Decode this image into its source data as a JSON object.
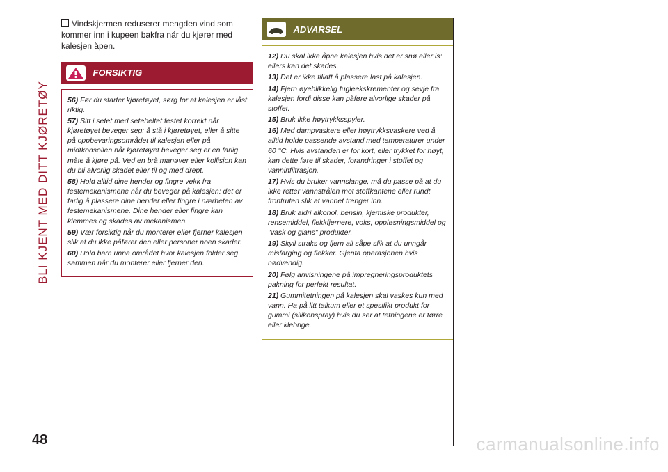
{
  "sidebarTitle": "BLI KJENT MED DITT KJØRETØY",
  "pageNumber": "48",
  "col1": {
    "intro": "Vindskjermen reduserer mengden vind som kommer inn i kupeen bakfra når du kjører med kalesjen åpen.",
    "warningLabel": "FORSIKTIG",
    "items": [
      {
        "n": "56)",
        "t": "Før du starter kjøretøyet, sørg for at kalesjen er låst riktig."
      },
      {
        "n": "57)",
        "t": "Sitt i setet med setebeltet festet korrekt når kjøretøyet beveger seg: å stå i kjøretøyet, eller å sitte på oppbevaringsområdet til kalesjen eller på midtkonsollen når kjøretøyet beveger seg er en farlig måte å kjøre på. Ved en brå manøver eller kollisjon kan du bli alvorlig skadet eller til og med drept."
      },
      {
        "n": "58)",
        "t": "Hold alltid dine hender og fingre vekk fra festemekanismene når du beveger på kalesjen: det er farlig å plassere dine hender eller fingre i nærheten av festemekanismene. Dine hender eller fingre kan klemmes og skades av mekanismen."
      },
      {
        "n": "59)",
        "t": "Vær forsiktig når du monterer eller fjerner kalesjen slik at du ikke påfører den eller personer noen skader."
      },
      {
        "n": "60)",
        "t": "Hold barn unna området hvor kalesjen folder seg sammen når du monterer eller fjerner den."
      }
    ]
  },
  "col2": {
    "warningLabel": "ADVARSEL",
    "items": [
      {
        "n": "12)",
        "t": "Du skal ikke åpne kalesjen hvis det er snø eller is: ellers kan det skades."
      },
      {
        "n": "13)",
        "t": "Det er ikke tillatt å plassere last på kalesjen."
      },
      {
        "n": "14)",
        "t": "Fjern øyeblikkelig fugleekskrementer og sevje fra kalesjen fordi disse kan påføre alvorlige skader på stoffet."
      },
      {
        "n": "15)",
        "t": "Bruk ikke høytrykksspyler."
      },
      {
        "n": "16)",
        "t": "Med dampvaskere eller høytrykksvaskere ved å alltid holde passende avstand med temperaturer under 60 °C. Hvis avstanden er for kort, eller trykket for høyt, kan dette føre til skader, forandringer i stoffet og vanninfiltrasjon."
      },
      {
        "n": "17)",
        "t": "Hvis du bruker vannslange, må du passe på at du ikke retter vannstrålen mot stoffkantene eller rundt frontruten slik at vannet trenger inn."
      },
      {
        "n": "18)",
        "t": "Bruk aldri alkohol, bensin, kjemiske produkter, rensemiddel, flekkfjernere, voks, oppløsningsmiddel og \"vask og glans\" produkter."
      },
      {
        "n": "19)",
        "t": "Skyll straks og fjern all såpe slik at du unngår misfarging og flekker. Gjenta operasjonen hvis nødvendig."
      },
      {
        "n": "20)",
        "t": "Følg anvisningene på impregneringsproduktets pakning for perfekt resultat."
      },
      {
        "n": "21)",
        "t": "Gummitetningen på kalesjen skal vaskes kun med vann. Ha på litt talkum eller et spesifikt produkt for gummi (silikonspray) hvis du ser at tetningene er tørre eller klebrige."
      }
    ]
  },
  "watermark": "carmanualsonline.info",
  "colors": {
    "pink": "#9c1b30",
    "olive": "#6e6b2c",
    "oliveBorder": "#b0a93a",
    "text": "#231f20",
    "wm": "#d9d9d9"
  }
}
